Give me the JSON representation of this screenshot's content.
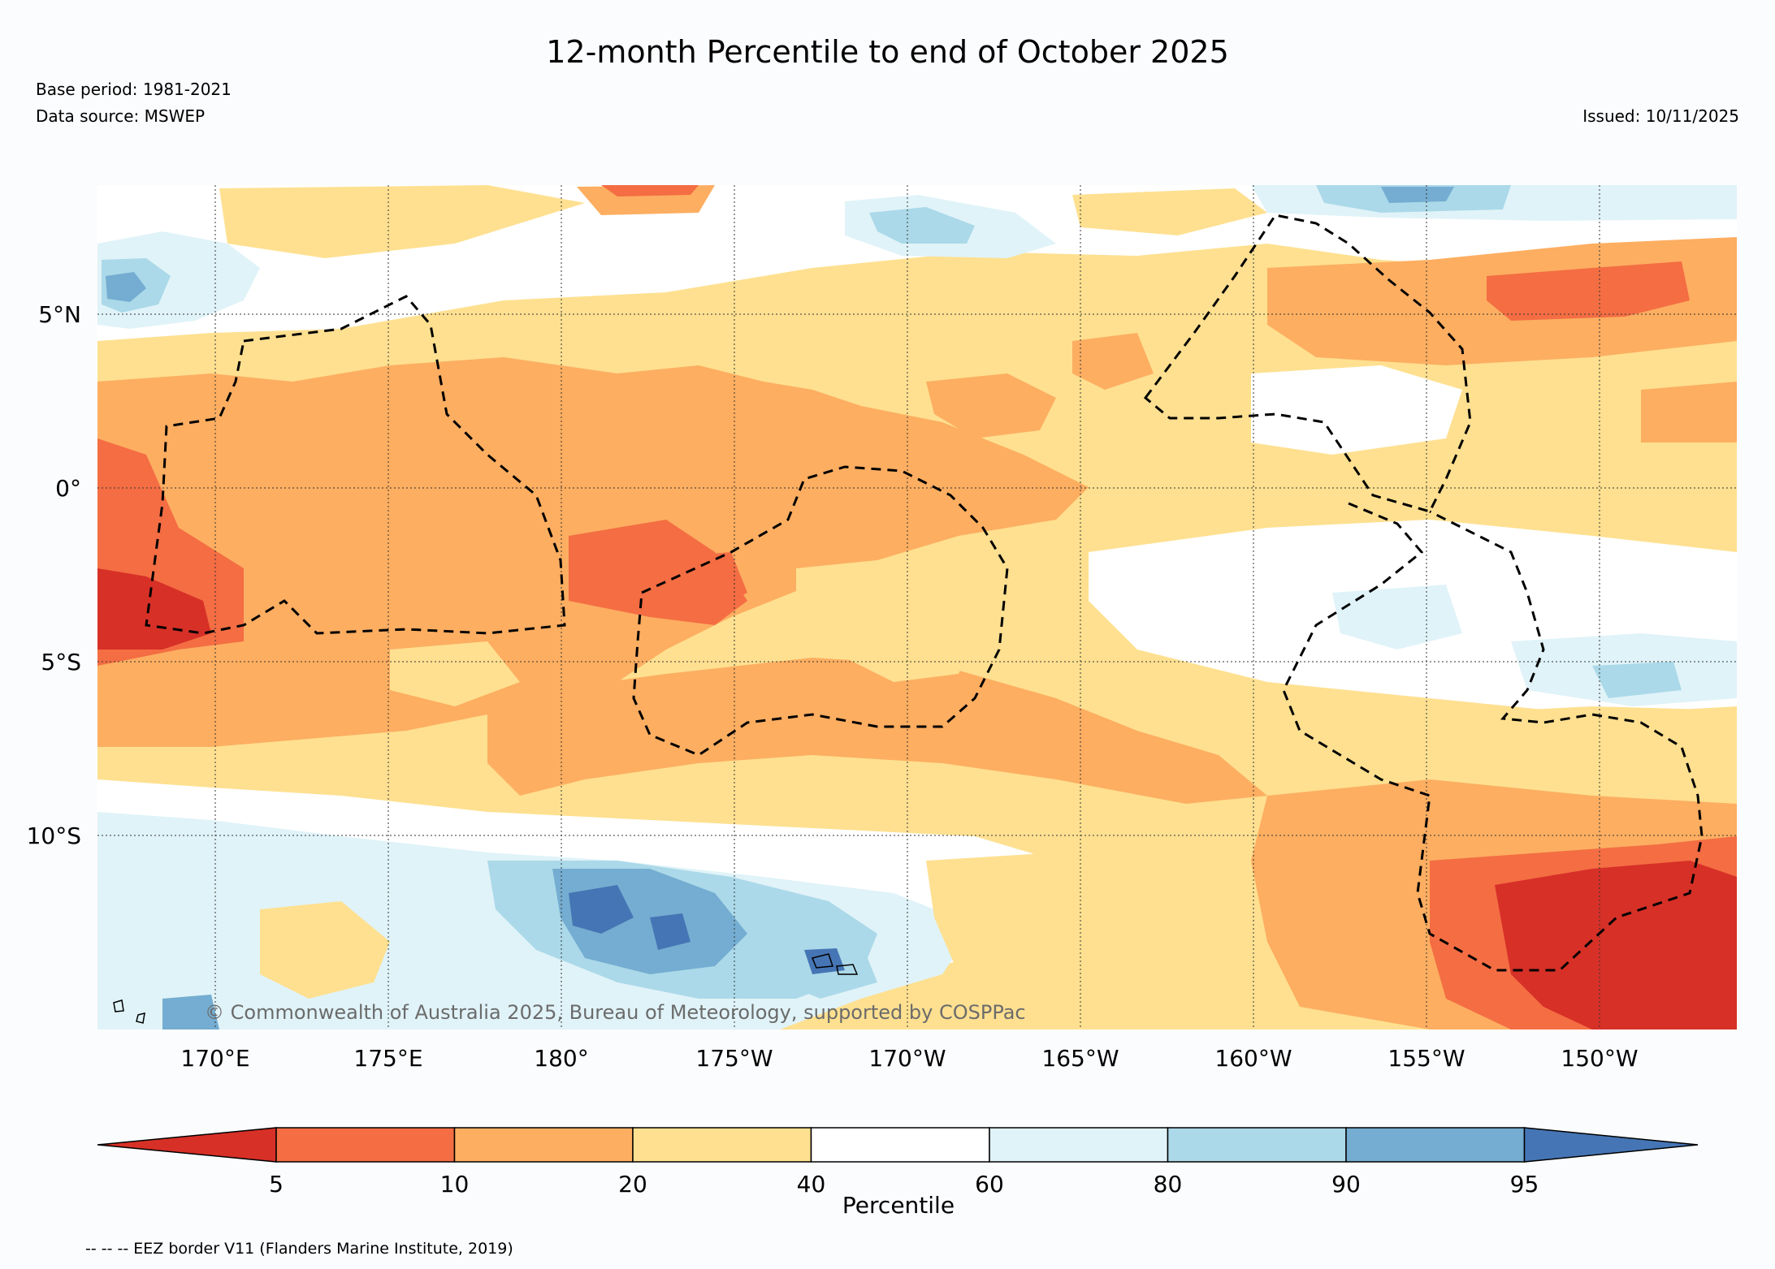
{
  "header": {
    "title": "12-month Percentile to end of October 2025",
    "base_period": "Base period: 1981-2021",
    "data_source": "Data source: MSWEP",
    "issued": "Issued: 10/11/2025"
  },
  "map": {
    "lat_labels": [
      "5°N",
      "0°",
      "5°S",
      "10°S"
    ],
    "lon_labels": [
      "170°E",
      "175°E",
      "180°",
      "175°W",
      "170°W",
      "165°W",
      "160°W",
      "155°W",
      "150°W"
    ],
    "credit": "© Commonwealth of Australia 2025, Bureau of Meteorology, supported by COSPPac",
    "region_colors": {
      "below_5": "#d73027",
      "p5_10": "#f46d43",
      "p10_20": "#fdae61",
      "p20_40": "#fee090",
      "p40_60": "#ffffff",
      "p60_80": "#e0f3f8",
      "p80_90": "#abd9e9",
      "p90_95": "#74add1",
      "above_95": "#4575b4"
    }
  },
  "colorbar": {
    "label": "Percentile",
    "ticks": [
      "5",
      "10",
      "20",
      "40",
      "60",
      "80",
      "90",
      "95"
    ],
    "colors": [
      "#d73027",
      "#f46d43",
      "#fdae61",
      "#fee090",
      "#ffffff",
      "#e0f3f8",
      "#abd9e9",
      "#74add1",
      "#4575b4"
    ]
  },
  "footer": {
    "eez_note": "-- -- -- EEZ border V11 (Flanders Marine Institute, 2019)"
  }
}
